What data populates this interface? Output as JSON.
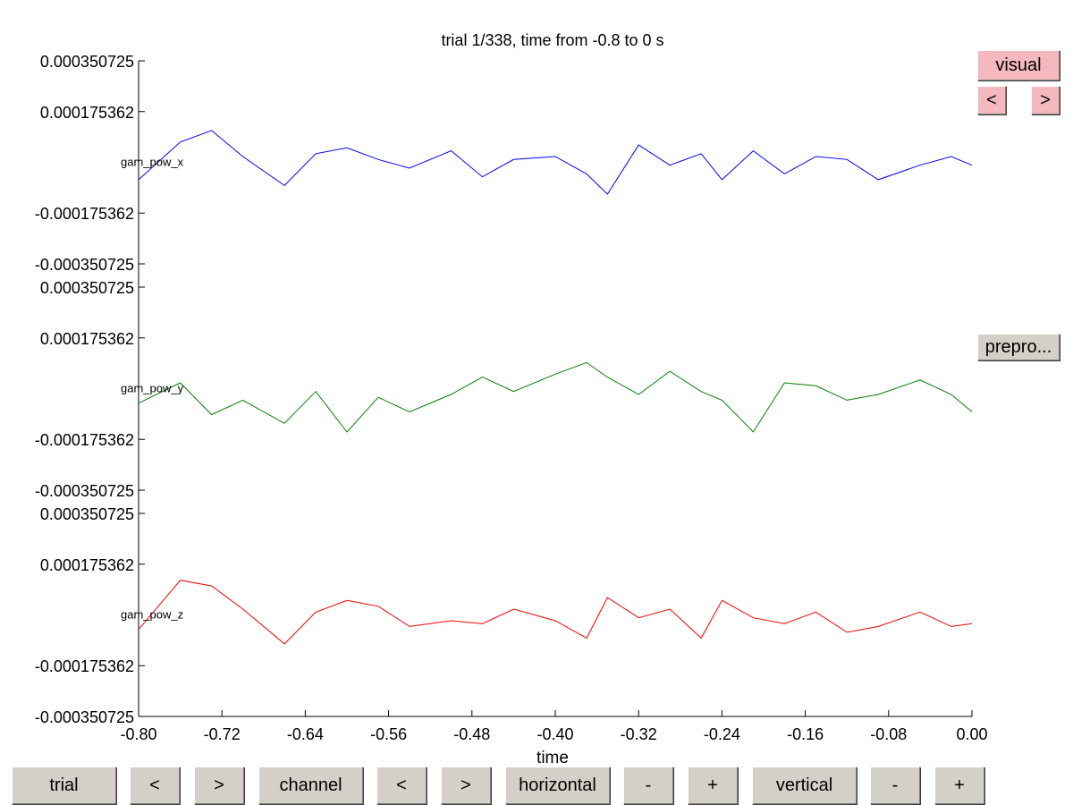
{
  "title": "trial 1/338, time from -0.8 to 0 s",
  "xlabel": "time",
  "side_buttons": {
    "visual": "visual",
    "prev": "<",
    "next": ">",
    "prepro": "prepro..."
  },
  "bottom_buttons": [
    "trial",
    "<",
    ">",
    "channel",
    "<",
    ">",
    "horizontal",
    "-",
    "+",
    "vertical",
    "-",
    "+"
  ],
  "chart_data": {
    "type": "line",
    "title": "trial 1/338, time from -0.8 to 0 s",
    "xlabel": "time",
    "ylabel": "",
    "xlim": [
      -0.8,
      0.0
    ],
    "xticks": [
      -0.8,
      -0.72,
      -0.64,
      -0.56,
      -0.48,
      -0.4,
      -0.32,
      -0.24,
      -0.16,
      -0.08,
      0.0
    ],
    "xtick_labels": [
      "-0.80",
      "-0.72",
      "-0.64",
      "-0.56",
      "-0.48",
      "-0.40",
      "-0.32",
      "-0.24",
      "-0.16",
      "-0.08",
      "0.00"
    ],
    "ylim": [
      -0.000350725,
      0.000350725
    ],
    "yticks": [
      0.000350725,
      0.000175362,
      -0.000175362,
      -0.000350725
    ],
    "ytick_labels": [
      "0.000350725",
      "0.000175362",
      "-0.000175362",
      "-0.000350725"
    ],
    "grid": false,
    "series": [
      {
        "name": "gam_pow_x",
        "color": "#0000ff",
        "x": [
          -0.8,
          -0.76,
          -0.73,
          -0.7,
          -0.66,
          -0.63,
          -0.6,
          -0.57,
          -0.54,
          -0.5,
          -0.47,
          -0.44,
          -0.4,
          -0.37,
          -0.35,
          -0.32,
          -0.29,
          -0.26,
          -0.24,
          -0.21,
          -0.18,
          -0.15,
          -0.12,
          -0.09,
          -0.05,
          -0.02,
          0.0
        ],
        "y": [
          -6e-05,
          7e-05,
          0.00011,
          2e-05,
          -8e-05,
          3e-05,
          5e-05,
          1e-05,
          -2e-05,
          4e-05,
          -5e-05,
          1e-05,
          2e-05,
          -4e-05,
          -0.00011,
          6e-05,
          -1e-05,
          3e-05,
          -6e-05,
          4e-05,
          -4e-05,
          2e-05,
          1e-05,
          -6e-05,
          -1e-05,
          2e-05,
          -1e-05
        ]
      },
      {
        "name": "gam_pow_y",
        "color": "#007f00",
        "x": [
          -0.8,
          -0.76,
          -0.73,
          -0.7,
          -0.66,
          -0.63,
          -0.6,
          -0.57,
          -0.54,
          -0.5,
          -0.47,
          -0.44,
          -0.4,
          -0.37,
          -0.35,
          -0.32,
          -0.29,
          -0.26,
          -0.24,
          -0.21,
          -0.18,
          -0.15,
          -0.12,
          -0.09,
          -0.05,
          -0.02,
          0.0
        ],
        "y": [
          -5e-05,
          2e-05,
          -9e-05,
          -4e-05,
          -0.00012,
          -1e-05,
          -0.00015,
          -3e-05,
          -8e-05,
          -2e-05,
          4e-05,
          -1e-05,
          5e-05,
          9e-05,
          4e-05,
          -2e-05,
          6e-05,
          -1e-05,
          -4e-05,
          -0.00015,
          2e-05,
          1e-05,
          -4e-05,
          -2e-05,
          3e-05,
          -2e-05,
          -8e-05
        ]
      },
      {
        "name": "gam_pow_z",
        "color": "#ff0000",
        "x": [
          -0.8,
          -0.76,
          -0.73,
          -0.7,
          -0.66,
          -0.63,
          -0.6,
          -0.57,
          -0.54,
          -0.5,
          -0.47,
          -0.44,
          -0.4,
          -0.37,
          -0.35,
          -0.32,
          -0.29,
          -0.26,
          -0.24,
          -0.21,
          -0.18,
          -0.15,
          -0.12,
          -0.09,
          -0.05,
          -0.02,
          0.0
        ],
        "y": [
          -5e-05,
          0.00012,
          0.0001,
          2e-05,
          -0.0001,
          1e-05,
          5e-05,
          3e-05,
          -4e-05,
          -2e-05,
          -3e-05,
          2e-05,
          -2e-05,
          -8e-05,
          6e-05,
          -1e-05,
          2e-05,
          -8e-05,
          5e-05,
          -1e-05,
          -3e-05,
          1e-05,
          -6e-05,
          -4e-05,
          1e-05,
          -4e-05,
          -3e-05
        ]
      }
    ]
  }
}
